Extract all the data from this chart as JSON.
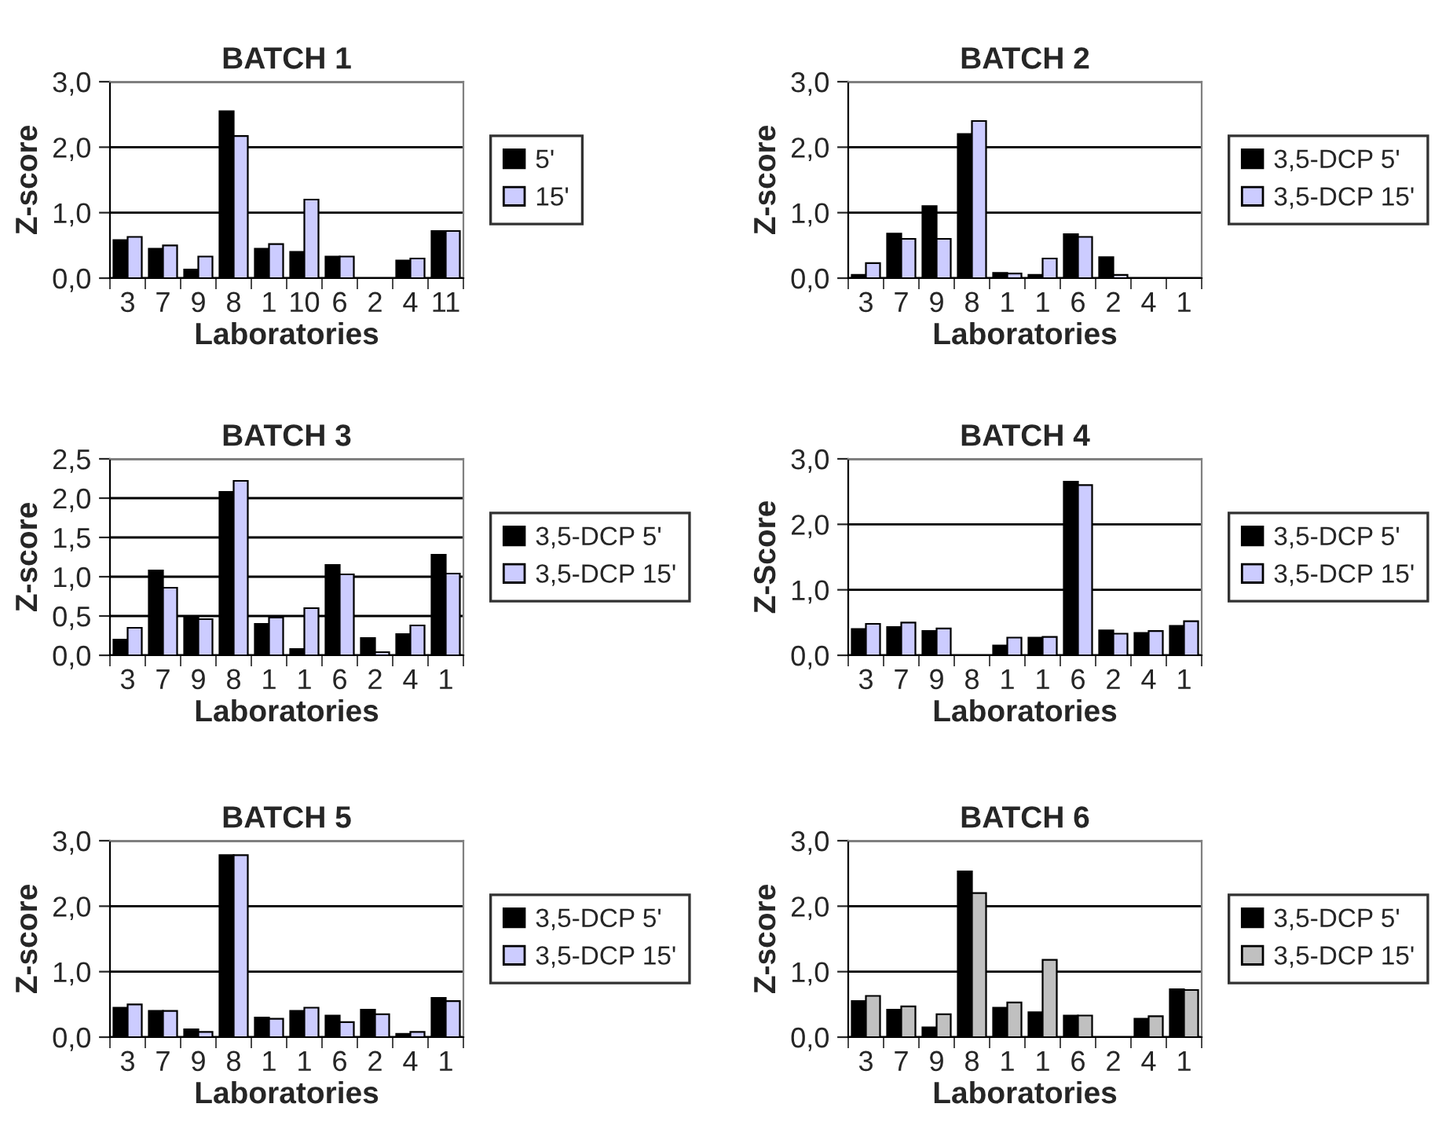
{
  "chart_data": [
    {
      "type": "bar",
      "title": "BATCH 1",
      "xlabel": "Laboratories",
      "ylabel": "Z-score",
      "categories": [
        "3",
        "7",
        "9",
        "8",
        "1",
        "10",
        "6",
        "2",
        "4",
        "11"
      ],
      "series": [
        {
          "name": "5'",
          "color": "#000000",
          "values": [
            0.58,
            0.45,
            0.13,
            2.55,
            0.45,
            0.4,
            0.33,
            null,
            0.27,
            0.72
          ]
        },
        {
          "name": "15'",
          "color": "#ccccff",
          "values": [
            0.63,
            0.5,
            0.33,
            2.17,
            0.52,
            1.2,
            0.33,
            null,
            0.3,
            0.72
          ]
        }
      ],
      "ylim": [
        0,
        3
      ],
      "yticks": [
        {
          "value": 0,
          "label": "0,0"
        },
        {
          "value": 1,
          "label": "1,0"
        },
        {
          "value": 2,
          "label": "2,0"
        },
        {
          "value": 3,
          "label": "3,0"
        }
      ],
      "grid": "y",
      "legend": "right"
    },
    {
      "type": "bar",
      "title": "BATCH 2",
      "xlabel": "Laboratories",
      "ylabel": "Z-score",
      "categories": [
        "3",
        "7",
        "9",
        "8",
        "1",
        "1",
        "6",
        "2",
        "4",
        "1"
      ],
      "series": [
        {
          "name": "3,5-DCP 5'",
          "color": "#000000",
          "values": [
            0.05,
            0.68,
            1.1,
            2.2,
            0.08,
            0.05,
            0.67,
            0.32,
            null,
            null
          ]
        },
        {
          "name": "3,5-DCP 15'",
          "color": "#ccccff",
          "values": [
            0.23,
            0.6,
            0.6,
            2.4,
            0.07,
            0.3,
            0.63,
            0.05,
            null,
            null
          ]
        }
      ],
      "ylim": [
        0,
        3
      ],
      "yticks": [
        {
          "value": 0,
          "label": "0,0"
        },
        {
          "value": 1,
          "label": "1,0"
        },
        {
          "value": 2,
          "label": "2,0"
        },
        {
          "value": 3,
          "label": "3,0"
        }
      ],
      "grid": "y",
      "legend": "right"
    },
    {
      "type": "bar",
      "title": "BATCH 3",
      "xlabel": "Laboratories",
      "ylabel": "Z-score",
      "categories": [
        "3",
        "7",
        "9",
        "8",
        "1",
        "1",
        "6",
        "2",
        "4",
        "1"
      ],
      "series": [
        {
          "name": "3,5-DCP 5'",
          "color": "#000000",
          "values": [
            0.2,
            1.08,
            0.48,
            2.08,
            0.4,
            0.08,
            1.15,
            0.22,
            0.27,
            1.28
          ]
        },
        {
          "name": "3,5-DCP 15'",
          "color": "#ccccff",
          "values": [
            0.35,
            0.86,
            0.46,
            2.22,
            0.48,
            0.6,
            1.03,
            0.04,
            0.38,
            1.04
          ]
        }
      ],
      "ylim": [
        0,
        2.5
      ],
      "yticks": [
        {
          "value": 0,
          "label": "0,0"
        },
        {
          "value": 0.5,
          "label": "0,5"
        },
        {
          "value": 1,
          "label": "1,0"
        },
        {
          "value": 1.5,
          "label": "1,5"
        },
        {
          "value": 2,
          "label": "2,0"
        },
        {
          "value": 2.5,
          "label": "2,5"
        }
      ],
      "grid": "y",
      "legend": "right"
    },
    {
      "type": "bar",
      "title": "BATCH 4",
      "xlabel": "Laboratories",
      "ylabel": "Z-Score",
      "categories": [
        "3",
        "7",
        "9",
        "8",
        "1",
        "1",
        "6",
        "2",
        "4",
        "1"
      ],
      "series": [
        {
          "name": "3,5-DCP 5'",
          "color": "#000000",
          "values": [
            0.4,
            0.43,
            0.37,
            null,
            0.15,
            0.27,
            2.65,
            0.38,
            0.34,
            0.45
          ]
        },
        {
          "name": "3,5-DCP 15'",
          "color": "#ccccff",
          "values": [
            0.48,
            0.5,
            0.41,
            null,
            0.27,
            0.28,
            2.6,
            0.33,
            0.37,
            0.52
          ]
        }
      ],
      "ylim": [
        0,
        3
      ],
      "yticks": [
        {
          "value": 0,
          "label": "0,0"
        },
        {
          "value": 1,
          "label": "1,0"
        },
        {
          "value": 2,
          "label": "2,0"
        },
        {
          "value": 3,
          "label": "3,0"
        }
      ],
      "grid": "y",
      "legend": "right"
    },
    {
      "type": "bar",
      "title": "BATCH 5",
      "xlabel": "Laboratories",
      "ylabel": "Z-score",
      "categories": [
        "3",
        "7",
        "9",
        "8",
        "1",
        "1",
        "6",
        "2",
        "4",
        "1"
      ],
      "series": [
        {
          "name": "3,5-DCP 5'",
          "color": "#000000",
          "values": [
            0.45,
            0.4,
            0.12,
            2.78,
            0.3,
            0.4,
            0.33,
            0.42,
            0.05,
            0.6
          ]
        },
        {
          "name": "3,5-DCP 15'",
          "color": "#ccccff",
          "values": [
            0.5,
            0.4,
            0.08,
            2.78,
            0.28,
            0.45,
            0.23,
            0.35,
            0.08,
            0.55
          ]
        }
      ],
      "ylim": [
        0,
        3
      ],
      "yticks": [
        {
          "value": 0,
          "label": "0,0"
        },
        {
          "value": 1,
          "label": "1,0"
        },
        {
          "value": 2,
          "label": "2,0"
        },
        {
          "value": 3,
          "label": "3,0"
        }
      ],
      "grid": "y",
      "legend": "right"
    },
    {
      "type": "bar",
      "title": "BATCH 6",
      "xlabel": "Laboratories",
      "ylabel": "Z-score",
      "categories": [
        "3",
        "7",
        "9",
        "8",
        "1",
        "1",
        "6",
        "2",
        "4",
        "1"
      ],
      "series": [
        {
          "name": "3,5-DCP 5'",
          "color": "#000000",
          "values": [
            0.55,
            0.42,
            0.15,
            2.53,
            0.45,
            0.38,
            0.33,
            null,
            0.28,
            0.73
          ]
        },
        {
          "name": "3,5-DCP 15'",
          "color": "#c0c0c0",
          "values": [
            0.63,
            0.47,
            0.35,
            2.2,
            0.53,
            1.18,
            0.33,
            null,
            0.32,
            0.72
          ]
        }
      ],
      "ylim": [
        0,
        3
      ],
      "yticks": [
        {
          "value": 0,
          "label": "0,0"
        },
        {
          "value": 1,
          "label": "1,0"
        },
        {
          "value": 2,
          "label": "2,0"
        },
        {
          "value": 3,
          "label": "3,0"
        }
      ],
      "grid": "y",
      "legend": "right"
    }
  ]
}
